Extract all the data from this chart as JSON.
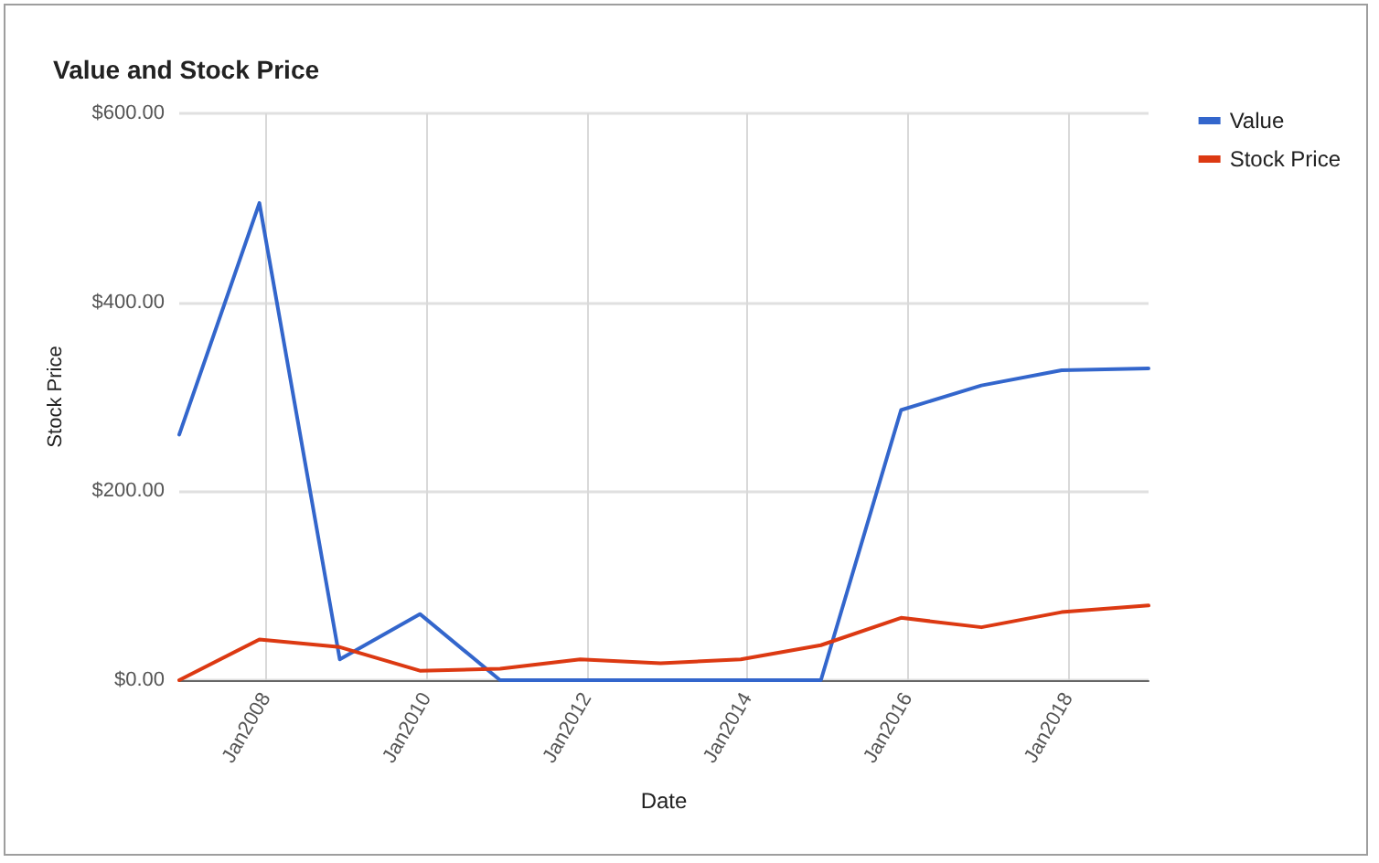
{
  "chart_data": {
    "type": "line",
    "title": "Value and Stock Price",
    "xlabel": "Date",
    "ylabel": "Stock Price",
    "x": [
      "2006-12",
      "2007-12",
      "2008-12",
      "2009-12",
      "2010-12",
      "2011-12",
      "2012-12",
      "2013-12",
      "2014-12",
      "2015-12",
      "2016-12",
      "2017-12",
      "2019-01"
    ],
    "series": [
      {
        "name": "Value",
        "color": "#3366cc",
        "values": [
          260,
          505,
          22,
          70,
          0,
          0,
          0,
          0,
          0,
          286,
          312,
          328,
          330
        ]
      },
      {
        "name": "Stock Price",
        "color": "#dc3912",
        "values": [
          0,
          43,
          35,
          10,
          12,
          22,
          18,
          22,
          37,
          66,
          56,
          72,
          79
        ]
      }
    ],
    "xlim": [
      "2006-12",
      "2019-01"
    ],
    "xticks": [
      {
        "value": "2008-01",
        "label": "Jan2008"
      },
      {
        "value": "2010-01",
        "label": "Jan2010"
      },
      {
        "value": "2012-01",
        "label": "Jan2012"
      },
      {
        "value": "2014-01",
        "label": "Jan2014"
      },
      {
        "value": "2016-01",
        "label": "Jan2016"
      },
      {
        "value": "2018-01",
        "label": "Jan2018"
      }
    ],
    "ylim": [
      0,
      600
    ],
    "yticks": [
      {
        "value": 0,
        "label": "$0.00"
      },
      {
        "value": 200,
        "label": "$200.00"
      },
      {
        "value": 400,
        "label": "$400.00"
      },
      {
        "value": 600,
        "label": "$600.00"
      }
    ],
    "grid": true,
    "legend": "top right",
    "marker": "none"
  }
}
